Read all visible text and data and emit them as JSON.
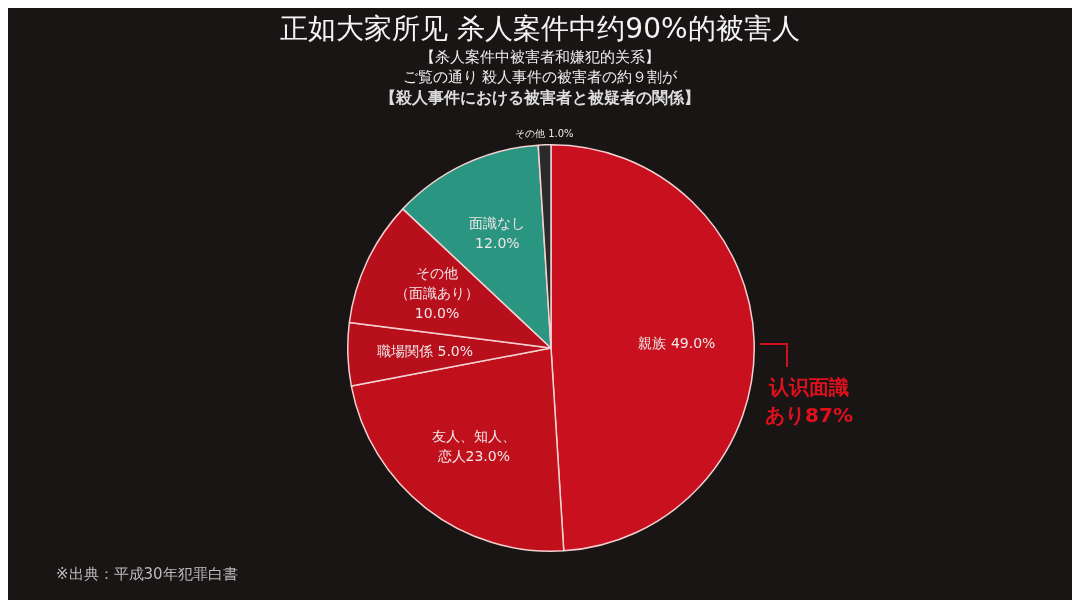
{
  "chart_data": {
    "type": "pie",
    "title": "【殺人事件における被害者と被疑者の関係】",
    "subtitle": "【杀人案件中被害者和嫌犯的关系】",
    "categories": [
      "親族",
      "友人、知人、恋人",
      "職場関係",
      "その他（面識あり）",
      "面識なし",
      "その他"
    ],
    "values": [
      49.0,
      23.0,
      5.0,
      10.0,
      12.0,
      1.0
    ],
    "value_labels": [
      "49.0%",
      "23.0%",
      "5.0%",
      "10.0%",
      "12.0%",
      "1.0%"
    ],
    "colors": [
      "#c8101e",
      "#c0101c",
      "#b80f1c",
      "#b80f1c",
      "#2a9580",
      "#2a2a2a"
    ],
    "legend": false,
    "annotations": [
      "正如大家所见 杀人案件中约90%的被害人",
      "ご覧の通り 殺人事件の被害者の約９割が",
      "认识面識あり87%",
      "※出典：平成30年犯罪白書"
    ]
  }
}
